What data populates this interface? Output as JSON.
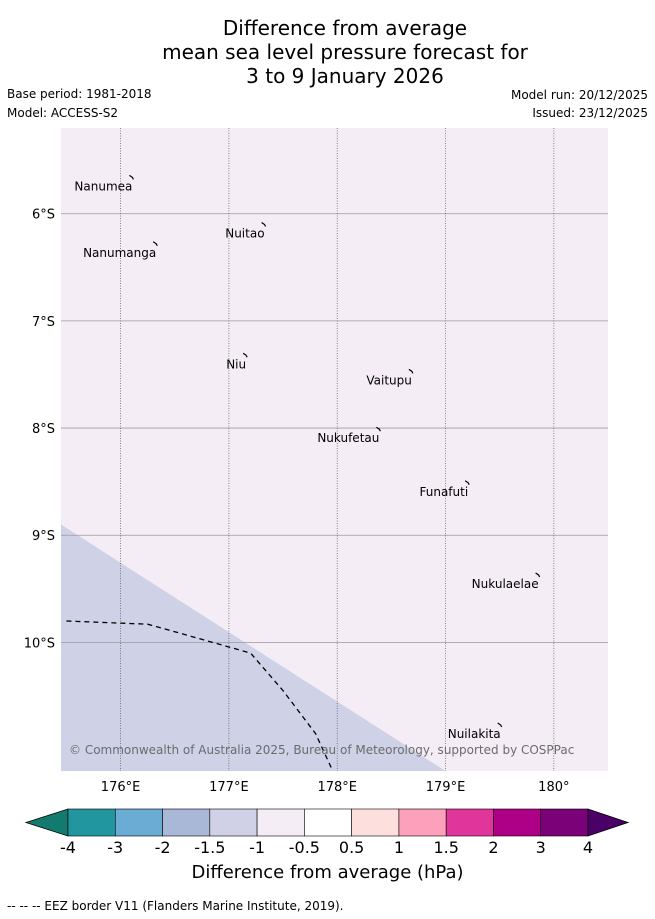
{
  "title": {
    "line1": "Difference from average",
    "line2": "mean sea level pressure forecast for",
    "line3": "3 to 9 January 2026"
  },
  "meta": {
    "base_period": "Base period: 1981-2018",
    "model": "Model: ACCESS-S2",
    "model_run": "Model run: 20/12/2025",
    "issued": "Issued: 23/12/2025"
  },
  "map": {
    "lon_range": [
      175.45,
      180.5
    ],
    "lat_range": [
      -11.2,
      -5.2
    ],
    "background_color": "#f5edf6",
    "lower_region_color": "#cfd1e6",
    "lat_ticks": [
      {
        "value": -6,
        "label": "6°S"
      },
      {
        "value": -7,
        "label": "7°S"
      },
      {
        "value": -8,
        "label": "8°S"
      },
      {
        "value": -9,
        "label": "9°S"
      },
      {
        "value": -10,
        "label": "10°S"
      }
    ],
    "lon_ticks": [
      {
        "value": 176,
        "label": "176°E"
      },
      {
        "value": 177,
        "label": "177°E"
      },
      {
        "value": 178,
        "label": "178°E"
      },
      {
        "value": 179,
        "label": "179°E"
      },
      {
        "value": 180,
        "label": "180°"
      }
    ],
    "places": [
      {
        "name": "Nanumea",
        "lon": 176.1,
        "lat": -5.67
      },
      {
        "name": "Nuitao",
        "lon": 177.32,
        "lat": -6.11
      },
      {
        "name": "Nanumanga",
        "lon": 176.32,
        "lat": -6.29
      },
      {
        "name": "Niu",
        "lon": 177.15,
        "lat": -7.33
      },
      {
        "name": "Vaitupu",
        "lon": 178.68,
        "lat": -7.48
      },
      {
        "name": "Nukufetau",
        "lon": 178.38,
        "lat": -8.02
      },
      {
        "name": "Funafuti",
        "lon": 179.2,
        "lat": -8.52
      },
      {
        "name": "Nukulaelae",
        "lon": 179.85,
        "lat": -9.38
      },
      {
        "name": "Nuilakita",
        "lon": 179.5,
        "lat": -10.78
      }
    ],
    "contour_boundary": [
      [
        175.45,
        -8.9
      ],
      [
        179.0,
        -11.2
      ]
    ],
    "eez_border": [
      [
        175.5,
        -9.8
      ],
      [
        176.25,
        -9.83
      ],
      [
        176.5,
        -9.9
      ],
      [
        177.2,
        -10.1
      ],
      [
        177.5,
        -10.45
      ],
      [
        177.8,
        -10.85
      ],
      [
        177.95,
        -11.18
      ]
    ],
    "copyright": "© Commonwealth of Australia 2025, Bureau of Meteorology, supported by COSPPac"
  },
  "colorbar": {
    "title": "Difference from average (hPa)",
    "tick_labels": [
      "-4",
      "-3",
      "-2",
      "-1.5",
      "-1",
      "-0.5",
      "0.5",
      "1",
      "1.5",
      "2",
      "3",
      "4"
    ],
    "under_color": "#127a6e",
    "over_color": "#4a0066",
    "bins": [
      "#21969f",
      "#6aacd3",
      "#a8b8d6",
      "#d0d1e6",
      "#f5edf6",
      "#ffffff",
      "#fde0dd",
      "#fca0bc",
      "#e0359a",
      "#ad0086",
      "#7a0177"
    ]
  },
  "footnote": "--  --  -- EEZ border V11 (Flanders Marine Institute, 2019)."
}
